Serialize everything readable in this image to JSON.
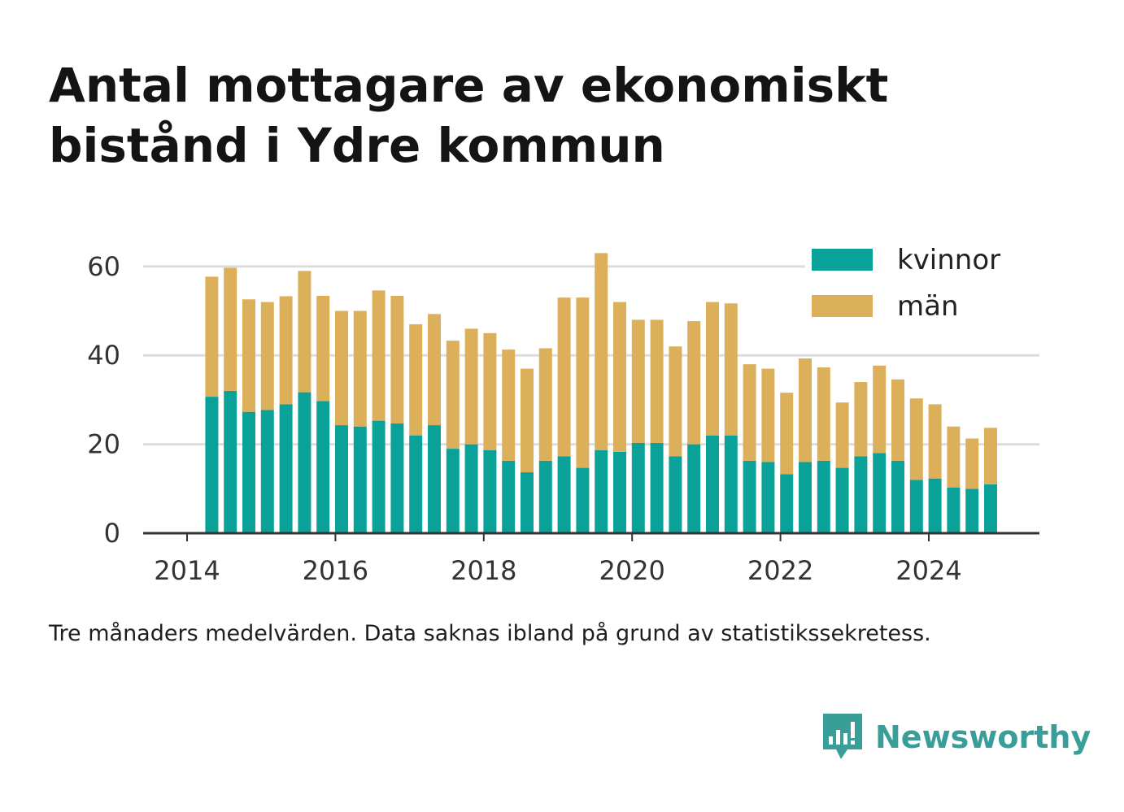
{
  "title": "Antal mottagare av ekonomiskt bistånd i Ydre kommun",
  "footnote": "Tre månaders medelvärden. Data saknas ibland på grund av statistikssekretess.",
  "brand": {
    "name": "Newsworthy",
    "icon": "newsworthy-logo-icon",
    "color": "#3a9e98"
  },
  "chart_data": {
    "type": "bar",
    "stacked": true,
    "x_axis": {
      "type": "date",
      "ticks": [
        "2014",
        "2016",
        "2018",
        "2020",
        "2022",
        "2024"
      ]
    },
    "ylim": [
      0,
      70
    ],
    "y_ticks": [
      0,
      20,
      40,
      60
    ],
    "grid": true,
    "legend_position": "top-right",
    "dates": [
      "2014-05",
      "2014-08",
      "2014-11",
      "2015-02",
      "2015-05",
      "2015-08",
      "2015-11",
      "2016-02",
      "2016-05",
      "2016-08",
      "2016-11",
      "2017-02",
      "2017-05",
      "2017-08",
      "2017-11",
      "2018-02",
      "2018-05",
      "2018-08",
      "2018-11",
      "2019-02",
      "2019-05",
      "2019-08",
      "2019-11",
      "2020-02",
      "2020-05",
      "2020-08",
      "2020-11",
      "2021-02",
      "2021-05",
      "2021-08",
      "2021-11",
      "2022-02",
      "2022-05",
      "2022-08",
      "2022-11",
      "2023-02",
      "2023-05",
      "2023-08",
      "2023-11",
      "2024-02",
      "2024-05",
      "2024-08",
      "2024-11"
    ],
    "series": [
      {
        "name": "kvinnor",
        "color": "#0aa298",
        "values": [
          30.7,
          32.0,
          27.3,
          27.7,
          29.0,
          31.7,
          29.7,
          24.3,
          24.0,
          25.3,
          24.7,
          22.0,
          24.3,
          19.0,
          20.0,
          18.7,
          16.3,
          13.7,
          16.3,
          17.3,
          14.7,
          18.7,
          18.3,
          20.3,
          20.3,
          17.3,
          20.0,
          22.0,
          22.0,
          16.3,
          16.0,
          13.3,
          16.0,
          16.3,
          14.7,
          17.3,
          18.0,
          16.3,
          12.0,
          12.3,
          10.3,
          10.0,
          11.0
        ]
      },
      {
        "name": "män",
        "color": "#dcb05b",
        "values": [
          27.0,
          27.7,
          25.3,
          24.3,
          24.3,
          27.3,
          23.7,
          25.7,
          26.0,
          29.3,
          28.7,
          25.0,
          25.0,
          24.3,
          26.0,
          26.3,
          25.0,
          23.3,
          25.3,
          35.7,
          38.3,
          44.3,
          33.7,
          27.7,
          27.7,
          24.7,
          27.7,
          30.0,
          29.7,
          21.7,
          21.0,
          18.3,
          23.3,
          21.0,
          14.7,
          16.7,
          19.7,
          18.3,
          18.3,
          16.7,
          13.7,
          11.3,
          12.7
        ]
      }
    ]
  }
}
